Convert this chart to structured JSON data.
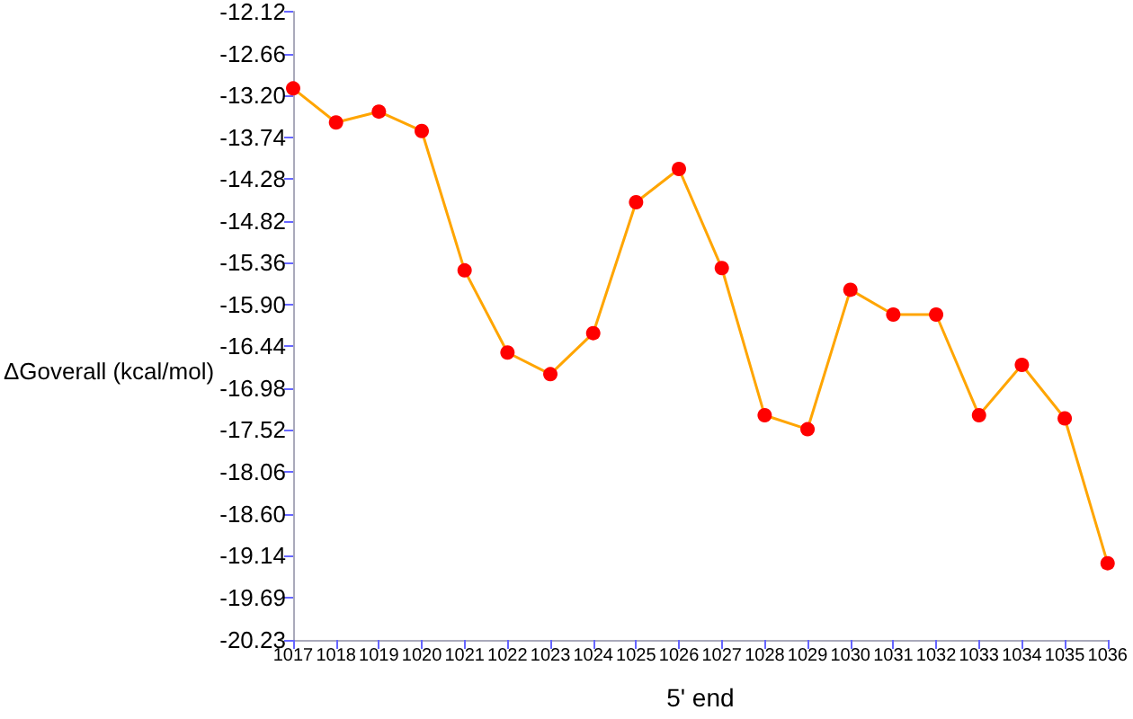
{
  "chart_data": {
    "type": "line",
    "xlabel": "5' end",
    "ylabel": "ΔGoverall (kcal/mol)",
    "categories": [
      "1017",
      "1018",
      "1019",
      "1020",
      "1021",
      "1022",
      "1023",
      "1024",
      "1025",
      "1026",
      "1027",
      "1028",
      "1029",
      "1030",
      "1031",
      "1032",
      "1033",
      "1034",
      "1035",
      "1036"
    ],
    "series": [
      {
        "color": "#ffa500",
        "colors": [
          "#ff0000",
          "#ff0000",
          "#ff0000",
          "#ff0000",
          "#ff0000",
          "#ff0000",
          "#ff0000",
          "#ff0000",
          "#ff0000",
          "#ff0000",
          "#ff0000",
          "#ff0000",
          "#ff0000",
          "#ff0000",
          "#ff0000",
          "#ff0000",
          "#ff0000",
          "#ff0000",
          "#ff0000",
          "#ff0000"
        ],
        "values": [
          -13.11,
          -13.55,
          -13.41,
          -13.66,
          -15.46,
          -16.52,
          -16.8,
          -16.27,
          -14.58,
          -14.15,
          -15.43,
          -17.33,
          -17.51,
          -15.71,
          -16.03,
          -16.03,
          -17.33,
          -16.68,
          -17.37,
          -19.24
        ]
      }
    ],
    "ylim": [
      -20.23,
      -12.12
    ],
    "yticks": [
      {
        "value": -20.23,
        "label": "-20.23"
      },
      {
        "value": -19.69,
        "label": "-19.69"
      },
      {
        "value": -19.14,
        "label": "-19.14"
      },
      {
        "value": -18.6,
        "label": "-18.60"
      },
      {
        "value": -18.06,
        "label": "-18.06"
      },
      {
        "value": -17.52,
        "label": "-17.52"
      },
      {
        "value": -16.98,
        "label": "-16.98"
      },
      {
        "value": -16.44,
        "label": "-16.44"
      },
      {
        "value": -15.9,
        "label": "-15.90"
      },
      {
        "value": -15.36,
        "label": "-15.36"
      },
      {
        "value": -14.82,
        "label": "-14.82"
      },
      {
        "value": -14.28,
        "label": "-14.28"
      },
      {
        "value": -13.74,
        "label": "-13.74"
      },
      {
        "value": -13.2,
        "label": "-13.20"
      },
      {
        "value": -12.66,
        "label": "-12.66"
      },
      {
        "value": -12.12,
        "label": "-12.12"
      }
    ],
    "grid": false,
    "marker": "circle",
    "line_style": "solid"
  }
}
